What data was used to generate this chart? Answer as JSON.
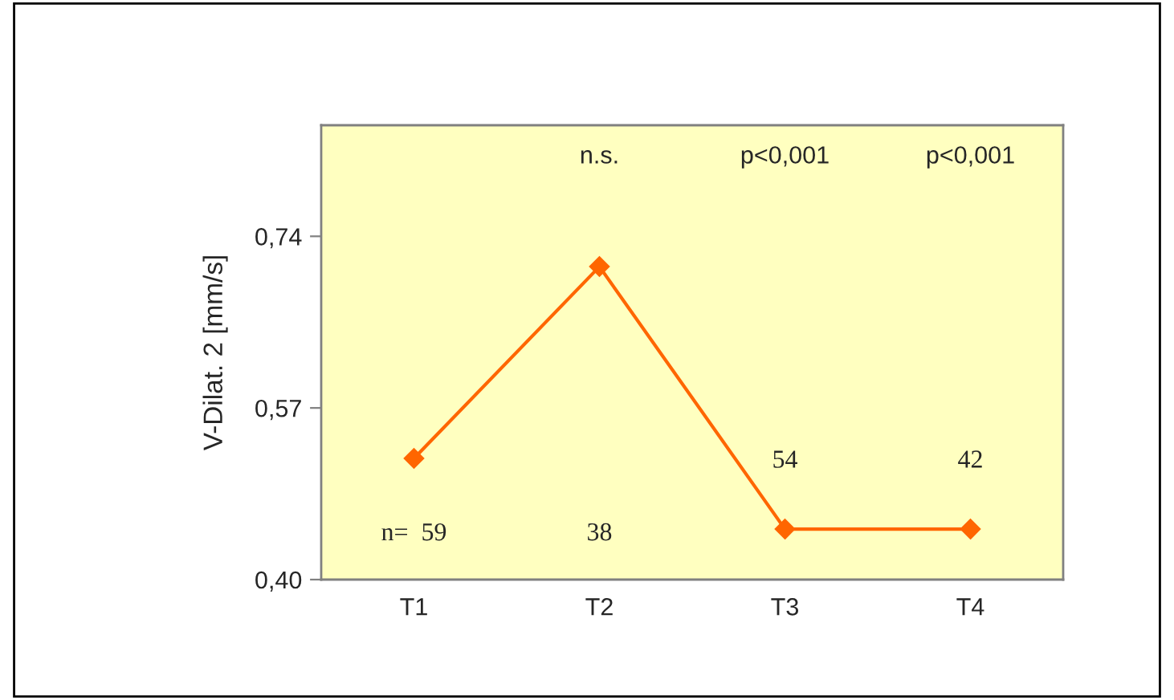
{
  "chart_data": {
    "type": "line",
    "ylabel": "V-Dilat. 2 [mm/s]",
    "categories": [
      "T1",
      "T2",
      "T3",
      "T4"
    ],
    "series": [
      {
        "color": "#ff6600",
        "values": [
          0.52,
          0.71,
          0.45,
          0.45
        ]
      }
    ],
    "ylim": [
      0.4,
      0.85
    ],
    "yticks": [
      {
        "value": 0.4,
        "label": "0,40"
      },
      {
        "value": 0.57,
        "label": "0,57"
      },
      {
        "value": 0.74,
        "label": "0,74"
      }
    ],
    "marker": "diamond",
    "grid": false,
    "annotations": [
      "n.s.",
      "p<0,001",
      "p<0,001",
      "n=  59",
      "38",
      "54",
      "42"
    ]
  }
}
